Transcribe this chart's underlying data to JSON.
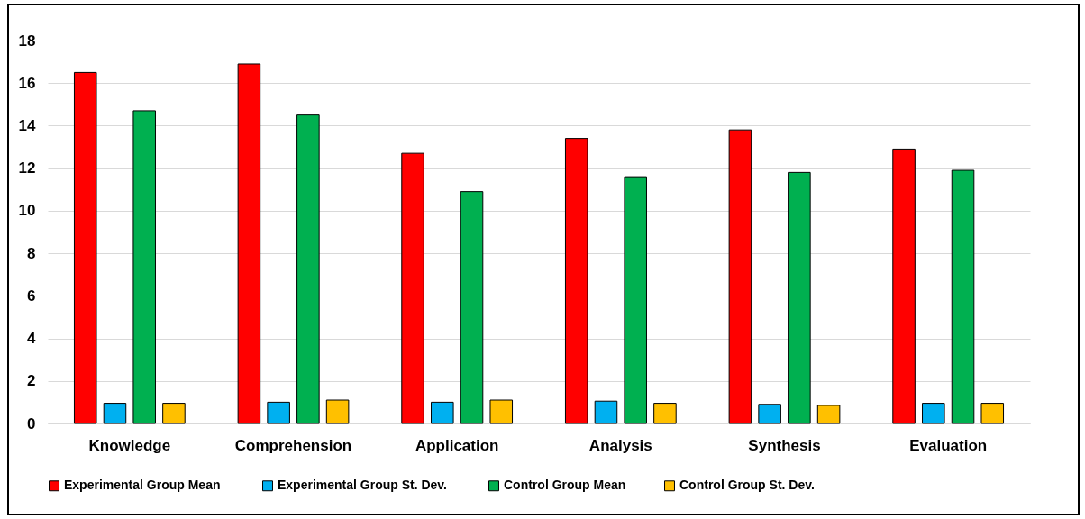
{
  "chart_data": {
    "type": "bar",
    "categories": [
      "Knowledge",
      "Comprehension",
      "Application",
      "Analysis",
      "Synthesis",
      "Evaluation"
    ],
    "series": [
      {
        "name": "Experimental  Group Mean",
        "color": "#ff0000",
        "values": [
          16.5,
          16.9,
          12.7,
          13.4,
          13.8,
          12.9
        ]
      },
      {
        "name": "Experimental  Group St. Dev.",
        "color": "#00b0f0",
        "values": [
          0.95,
          1.0,
          1.0,
          1.05,
          0.9,
          0.95
        ]
      },
      {
        "name": "Control Group Mean",
        "color": "#00b050",
        "values": [
          14.7,
          14.5,
          10.9,
          11.6,
          11.8,
          11.9
        ]
      },
      {
        "name": "Control Group St. Dev.",
        "color": "#ffc000",
        "values": [
          0.95,
          1.1,
          1.1,
          0.95,
          0.85,
          0.95
        ]
      }
    ],
    "ylim": [
      0,
      18
    ],
    "yticks": [
      0,
      2,
      4,
      6,
      8,
      10,
      12,
      14,
      16,
      18
    ],
    "grid": "y",
    "legend": "bottom"
  }
}
